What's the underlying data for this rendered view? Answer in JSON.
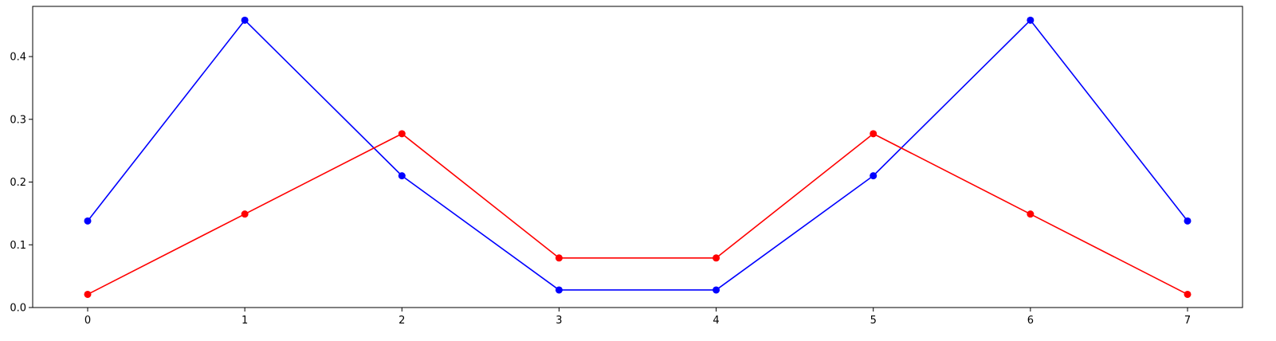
{
  "chart_data": {
    "type": "line",
    "title": "",
    "xlabel": "",
    "ylabel": "",
    "x": [
      0,
      1,
      2,
      3,
      4,
      5,
      6,
      7
    ],
    "xlim": [
      -0.35,
      7.35
    ],
    "ylim": [
      0.0,
      0.48
    ],
    "x_ticks": [
      0,
      1,
      2,
      3,
      4,
      5,
      6,
      7
    ],
    "y_ticks": [
      0.0,
      0.1,
      0.2,
      0.3,
      0.4
    ],
    "x_tick_labels": [
      "0",
      "1",
      "2",
      "3",
      "4",
      "5",
      "6",
      "7"
    ],
    "y_tick_labels": [
      "0.0",
      "0.1",
      "0.2",
      "0.3",
      "0.4"
    ],
    "grid": false,
    "legend": "none",
    "series": [
      {
        "color": "#0000ff",
        "marker": "circle",
        "values": [
          0.138,
          0.458,
          0.21,
          0.028,
          0.028,
          0.21,
          0.458,
          0.138
        ]
      },
      {
        "color": "#ff0000",
        "marker": "circle",
        "values": [
          0.021,
          0.149,
          0.277,
          0.079,
          0.079,
          0.277,
          0.149,
          0.021
        ]
      }
    ]
  }
}
